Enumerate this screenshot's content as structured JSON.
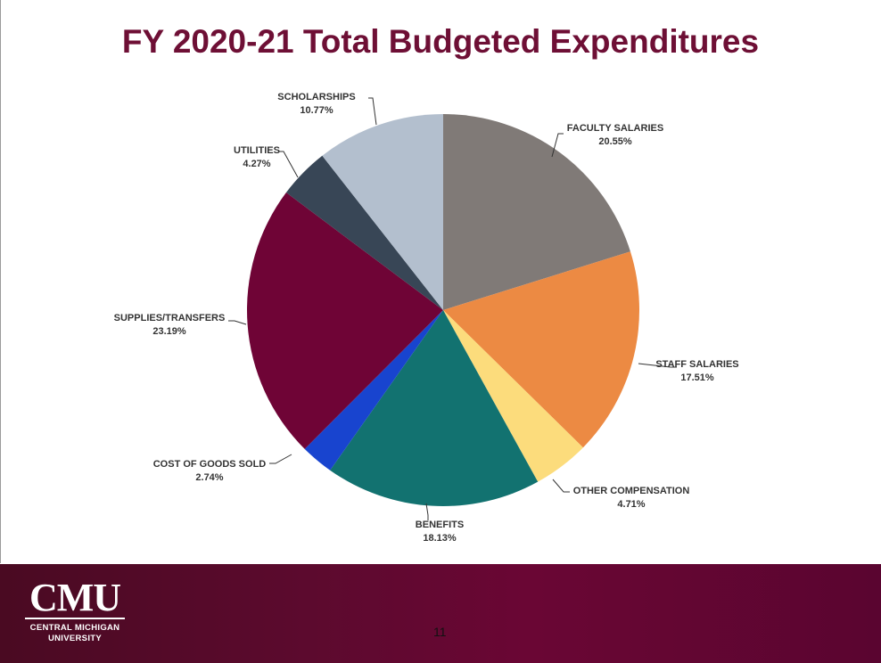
{
  "title": "FY 2020-21 Total Budgeted Expenditures",
  "chart_data": {
    "type": "pie",
    "title": "FY 2020-21 Total Budgeted Expenditures",
    "start": "top",
    "direction": "clockwise",
    "slices": [
      {
        "label": "FACULTY SALARIES",
        "value": 20.55,
        "value_label": "20.55%",
        "color": "#807a77"
      },
      {
        "label": "STAFF SALARIES",
        "value": 17.51,
        "value_label": "17.51%",
        "color": "#ec8a43"
      },
      {
        "label": "OTHER COMPENSATION",
        "value": 4.71,
        "value_label": "4.71%",
        "color": "#fcdc7c"
      },
      {
        "label": "BENEFITS",
        "value": 18.13,
        "value_label": "18.13%",
        "color": "#127270"
      },
      {
        "label": "COST OF GOODS SOLD",
        "value": 2.74,
        "value_label": "2.74%",
        "color": "#1844cf"
      },
      {
        "label": "SUPPLIES/TRANSFERS",
        "value": 23.19,
        "value_label": "23.19%",
        "color": "#6f0436"
      },
      {
        "label": "UTILITIES",
        "value": 4.27,
        "value_label": "4.27%",
        "color": "#384656"
      },
      {
        "label": "SCHOLARSHIPS",
        "value": 10.77,
        "value_label": "10.77%",
        "color": "#b3bfce"
      }
    ]
  },
  "footer": {
    "logo_mark": "CMU",
    "logo_line1": "CENTRAL MICHIGAN",
    "logo_line2": "UNIVERSITY",
    "page_number": "11"
  }
}
